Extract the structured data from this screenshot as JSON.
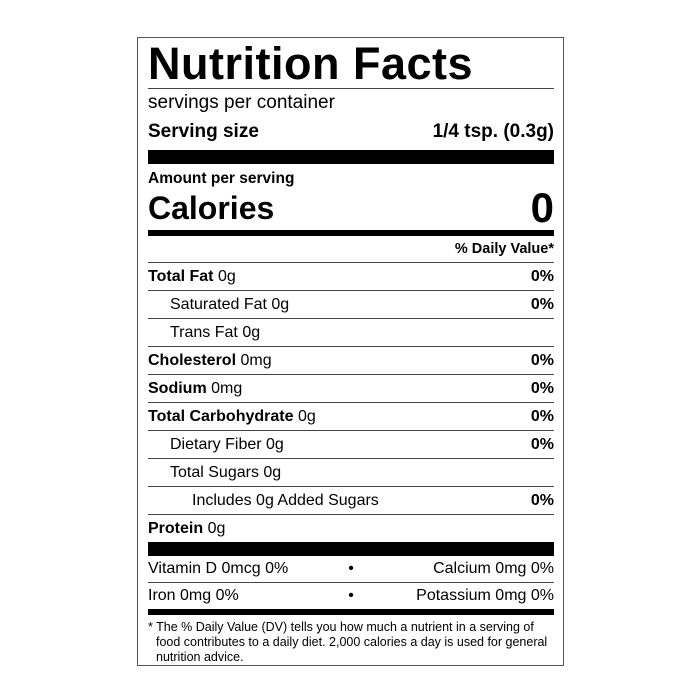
{
  "title": "Nutrition Facts",
  "servings_per_container": "servings per container",
  "serving_size": {
    "label": "Serving size",
    "value": "1/4 tsp. (0.3g)"
  },
  "amount_per_serving": "Amount per serving",
  "calories": {
    "label": "Calories",
    "value": "0"
  },
  "daily_value_header": "% Daily Value*",
  "nutrients": [
    {
      "name": "Total Fat",
      "amount": "0g",
      "dv": "0%",
      "bold": true,
      "indent": 0
    },
    {
      "name": "Saturated Fat",
      "amount": "0g",
      "dv": "0%",
      "bold": false,
      "indent": 1
    },
    {
      "name": "Trans Fat",
      "amount": "0g",
      "dv": "",
      "bold": false,
      "indent": 1
    },
    {
      "name": "Cholesterol",
      "amount": "0mg",
      "dv": "0%",
      "bold": true,
      "indent": 0
    },
    {
      "name": "Sodium",
      "amount": "0mg",
      "dv": "0%",
      "bold": true,
      "indent": 0
    },
    {
      "name": "Total Carbohydrate",
      "amount": "0g",
      "dv": "0%",
      "bold": true,
      "indent": 0
    },
    {
      "name": "Dietary Fiber",
      "amount": "0g",
      "dv": "0%",
      "bold": false,
      "indent": 1
    },
    {
      "name": "Total Sugars",
      "amount": "0g",
      "dv": "",
      "bold": false,
      "indent": 1
    },
    {
      "name": "Includes 0g Added Sugars",
      "amount": "",
      "dv": "0%",
      "bold": false,
      "indent": 2
    },
    {
      "name": "Protein",
      "amount": "0g",
      "dv": "",
      "bold": true,
      "indent": 0
    }
  ],
  "vitamins": [
    {
      "left": "Vitamin D 0mcg 0%",
      "right": "Calcium 0mg 0%"
    },
    {
      "left": "Iron 0mg 0%",
      "right": "Potassium 0mg 0%"
    }
  ],
  "bullet": "•",
  "footnote": "* The % Daily Value (DV) tells you how much a nutrient in a serving of food contributes to a daily diet. 2,000 calories a day is used for general nutrition advice."
}
